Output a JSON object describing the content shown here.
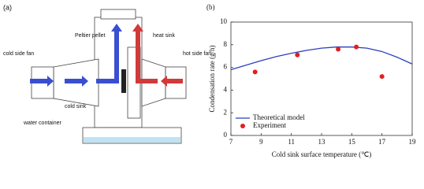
{
  "panel_a": {
    "label": "(a)",
    "texts": [
      "Peltier pellet",
      "heat sink",
      "cold side fan",
      "hot side fan",
      "cold sink",
      "water container"
    ]
  },
  "chart_data": {
    "type": "line",
    "panel_label": "(b)",
    "xlabel": "Cold sink surface temperature (℃)",
    "ylabel": "Condensation rate (g/h)",
    "xlim": [
      7,
      19
    ],
    "xticks": [
      7,
      9,
      11,
      13,
      15,
      17,
      19
    ],
    "ylim": [
      0,
      10
    ],
    "yticks": [
      0,
      2,
      4,
      6,
      8,
      10
    ],
    "legend": "lower left",
    "series": [
      {
        "name": "Theoretical model",
        "type": "line",
        "color": "#2b3fbf",
        "x": [
          7,
          8,
          9,
          10,
          11,
          12,
          13,
          14,
          15,
          16,
          17,
          18,
          19
        ],
        "values": [
          5.8,
          6.2,
          6.6,
          6.95,
          7.25,
          7.5,
          7.7,
          7.8,
          7.8,
          7.7,
          7.4,
          6.9,
          6.3
        ]
      },
      {
        "name": "Experiment",
        "type": "scatter",
        "color": "#e02020",
        "x": [
          8.6,
          11.4,
          14.1,
          15.3,
          17
        ],
        "values": [
          5.6,
          7.1,
          7.6,
          7.8,
          5.2
        ]
      }
    ]
  }
}
